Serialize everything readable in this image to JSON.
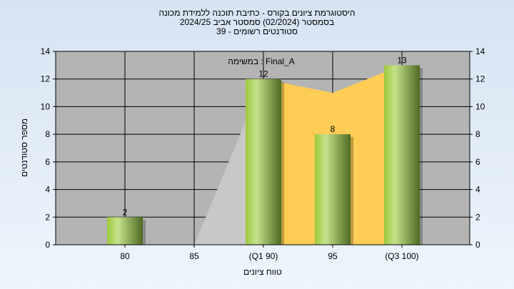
{
  "chart_data": {
    "type": "bar",
    "title_lines": [
      "היסטוגרמת ציונים בקורס - כתיבת תוכנה ללמידת מכונה",
      "בסמסטר  (02/2024)  סמסטר אביב 2024/25",
      "סטודנטים רשומים - 39"
    ],
    "annotation": "במשימה : Final_A",
    "xlabel": "טווח ציונים",
    "ylabel": "מספר סטודנטים",
    "categories": [
      "80",
      "85",
      "(Q1 90)",
      "95",
      "(Q3 100)"
    ],
    "values": [
      2,
      0,
      12,
      8,
      13
    ],
    "ylim": [
      0,
      14
    ],
    "yticks": [
      0,
      2,
      4,
      6,
      8,
      10,
      12,
      14
    ],
    "grid": true,
    "area_gray": [
      null,
      0,
      12,
      null,
      null
    ],
    "area_orange": [
      null,
      null,
      12,
      11,
      13
    ],
    "colors": {
      "plot_bg": "#b4b4b4",
      "bar_light": "#c6e38c",
      "bar_dark": "#4d6a22",
      "area_gray": "#c8c8c8",
      "area_orange": "#ffcc55"
    }
  }
}
